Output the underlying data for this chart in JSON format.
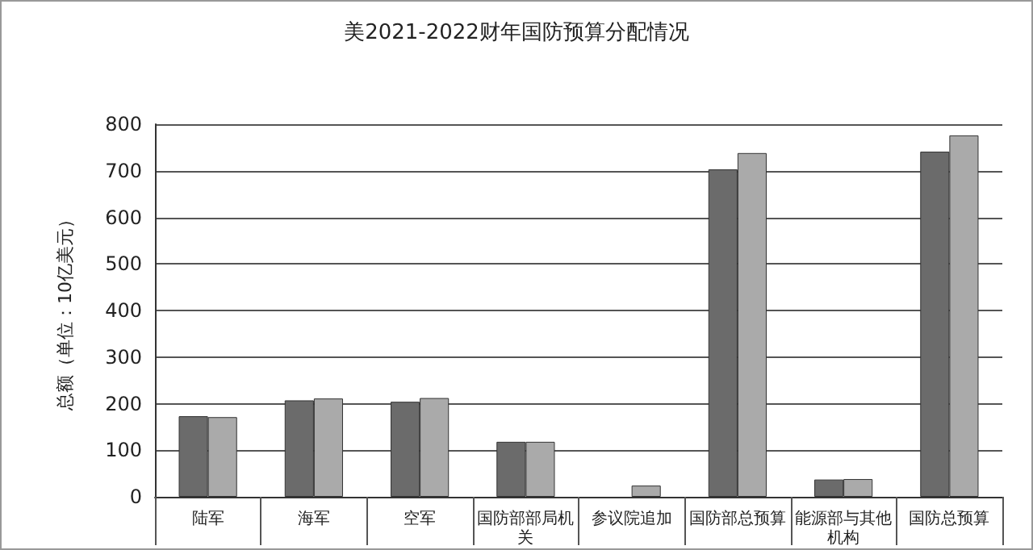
{
  "chart_data": {
    "type": "bar",
    "title": "美2021-2022财年国防预算分配情况",
    "ylabel": "总额（单位：10亿美元）",
    "categories": [
      "陆军",
      "海军",
      "空军",
      "国防部部局机关",
      "参议院追加",
      "国防部总预算",
      "能源部与其他机构",
      "国防总预算"
    ],
    "series": [
      {
        "color": "#6b6b6b",
        "values": [
          173,
          207,
          204,
          118,
          null,
          703,
          37,
          741
        ]
      },
      {
        "color": "#aaaaaa",
        "values": [
          171,
          211,
          212,
          118,
          24,
          738,
          38,
          776
        ]
      }
    ],
    "ylim": [
      0,
      800
    ],
    "yticks": [
      0,
      100,
      200,
      300,
      400,
      500,
      600,
      700,
      800
    ],
    "grid": "y"
  }
}
